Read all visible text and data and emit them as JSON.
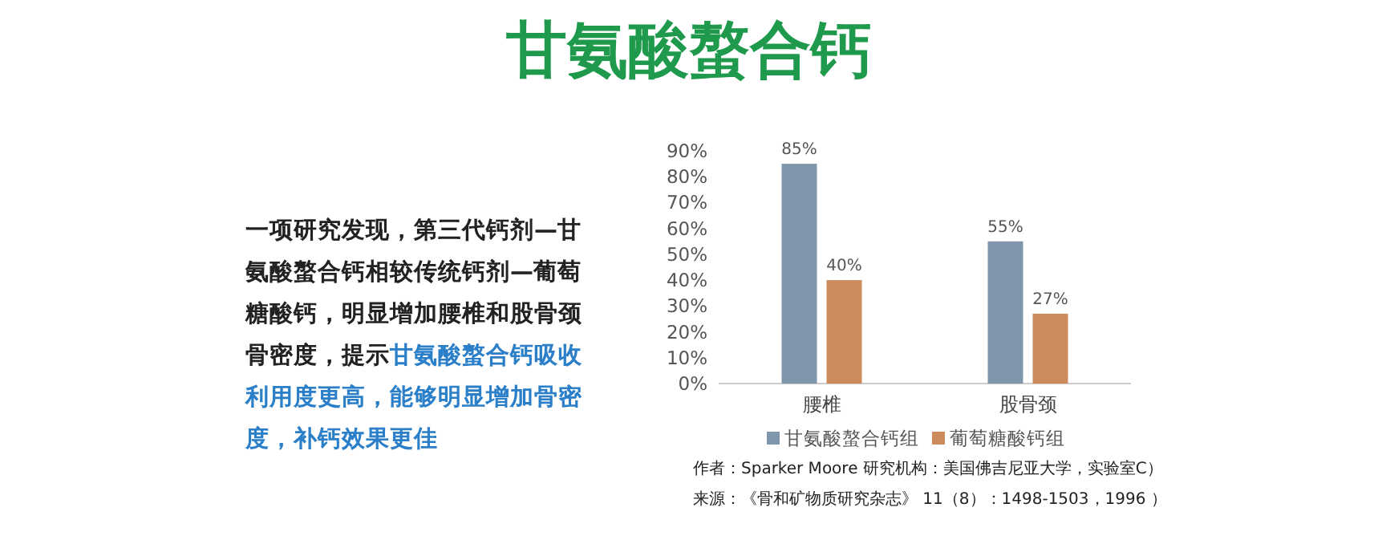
{
  "chart_data": {
    "type": "bar",
    "title": "甘氨酸螯合钙",
    "categories": [
      "腰椎",
      "股骨颈"
    ],
    "series": [
      {
        "name": "甘氨酸螯合钙组",
        "color": "#7f96ad",
        "values": [
          85,
          55
        ],
        "value_labels": [
          "85%",
          "55%"
        ]
      },
      {
        "name": "葡萄糖酸钙组",
        "color": "#cd8a5c",
        "values": [
          40,
          27
        ],
        "value_labels": [
          "40%",
          "27%"
        ]
      }
    ],
    "ylim": [
      0,
      90
    ],
    "yticks": [
      {
        "value": 0,
        "label": "0%"
      },
      {
        "value": 10,
        "label": "10%"
      },
      {
        "value": 20,
        "label": "20%"
      },
      {
        "value": 30,
        "label": "30%"
      },
      {
        "value": 40,
        "label": "40%"
      },
      {
        "value": 50,
        "label": "50%"
      },
      {
        "value": 60,
        "label": "60%"
      },
      {
        "value": 70,
        "label": "70%"
      },
      {
        "value": 80,
        "label": "80%"
      },
      {
        "value": 90,
        "label": "90%"
      }
    ],
    "grid": false,
    "legend": "bottom",
    "annotations": [
      "一项研究发现，第三代钙剂—甘氨酸螯合钙相较传统钙剂—葡萄糖酸钙，明显增加腰椎和股骨颈骨密度，提示",
      "甘氨酸螯合钙吸收利用度更高，能够明显增加骨密度，补钙效果更佳",
      "作者：Sparker Moore  研究机构：美国佛吉尼亚大学，实验室C）",
      "来源：《骨和矿物质研究杂志》 11（8）：1498-1503，1996 ）"
    ]
  }
}
